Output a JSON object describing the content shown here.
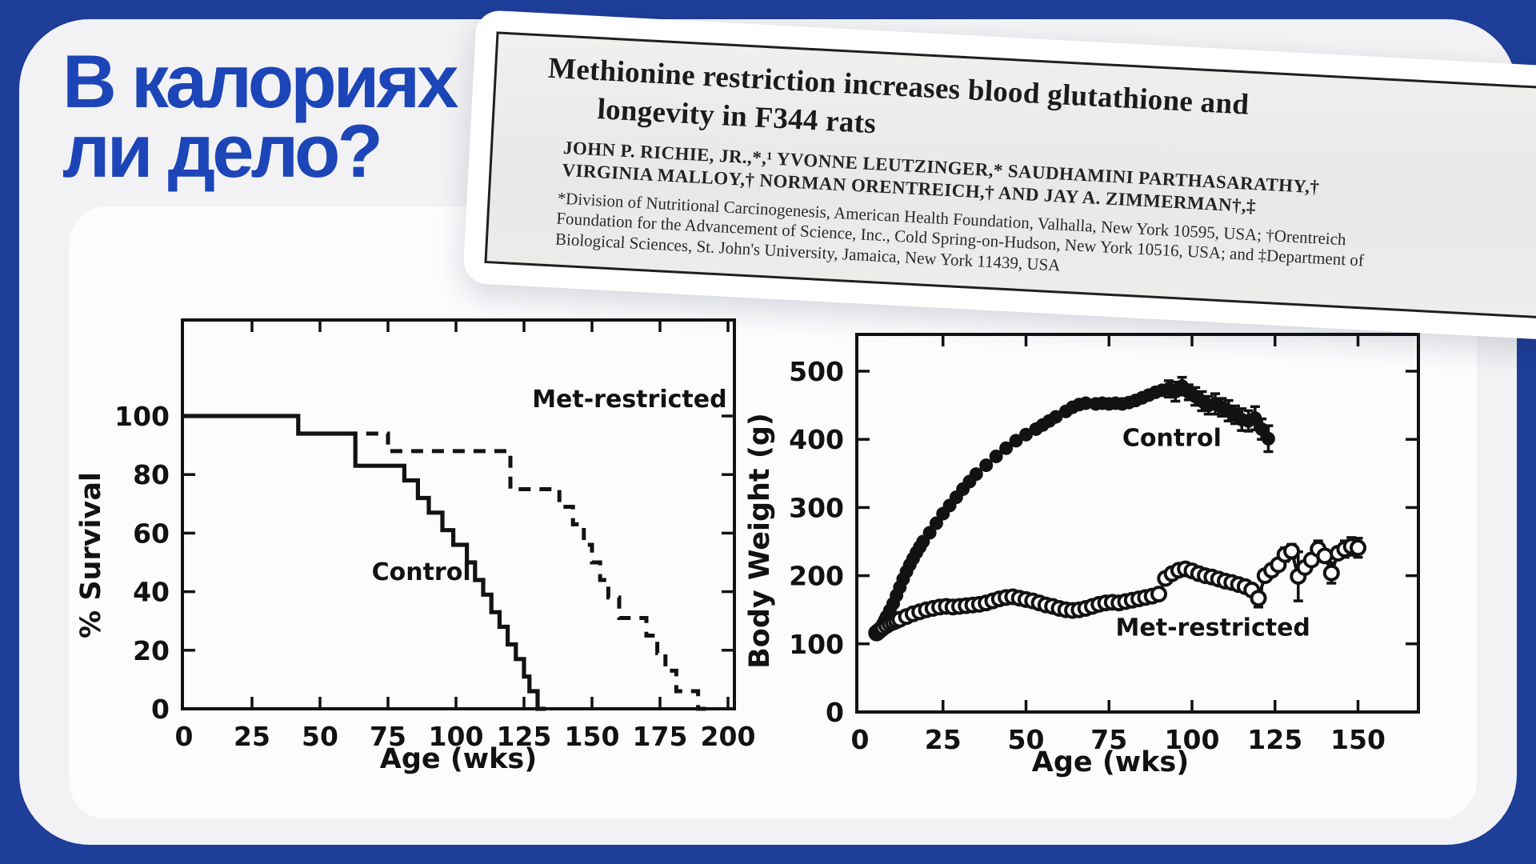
{
  "slide": {
    "title": {
      "line1": "В калориях",
      "line2": "ли дело?"
    },
    "colors": {
      "background": "#1e3e99",
      "card": "#f2f2f4",
      "panel": "#fcfcfd",
      "title_text": "#1c45b8",
      "ink": "#121212"
    }
  },
  "paper_clipping": {
    "title_line1": "Methionine restriction increases blood glutathione and",
    "title_line2": "longevity in F344 rats",
    "authors_line1": "JOHN P. RICHIE, JR.,*,¹ YVONNE LEUTZINGER,* SAUDHAMINI PARTHASARATHY,†",
    "authors_line2": "VIRGINIA MALLOY,† NORMAN ORENTREICH,† AND JAY A. ZIMMERMAN†,‡",
    "affiliation_line1": "*Division of Nutritional Carcinogenesis, American Health Foundation, Valhalla, New York 10595, USA; †Orentreich",
    "affiliation_line2": "Foundation for the Advancement of Science, Inc., Cold Spring-on-Hudson, New York 10516, USA; and ‡Department of",
    "affiliation_line3": "Biological Sciences, St. John's University, Jamaica, New York 11439, USA"
  },
  "chart_data": [
    {
      "type": "line",
      "variant": "survival-step",
      "xlabel": "Age (wks)",
      "ylabel": "% Survival",
      "xlim": [
        0,
        200
      ],
      "ylim": [
        0,
        100
      ],
      "xticks": [
        0,
        25,
        50,
        75,
        100,
        125,
        150,
        175,
        200
      ],
      "yticks": [
        0,
        20,
        40,
        60,
        80,
        100
      ],
      "grid": false,
      "series": [
        {
          "name": "Control",
          "style": "solid",
          "label_pos": [
            69,
            44
          ],
          "points": [
            [
              0,
              100
            ],
            [
              42,
              100
            ],
            [
              42,
              94
            ],
            [
              63,
              94
            ],
            [
              63,
              83
            ],
            [
              81,
              83
            ],
            [
              81,
              78
            ],
            [
              86,
              78
            ],
            [
              86,
              72
            ],
            [
              90,
              72
            ],
            [
              90,
              67
            ],
            [
              95,
              67
            ],
            [
              95,
              61
            ],
            [
              99,
              61
            ],
            [
              99,
              56
            ],
            [
              104,
              56
            ],
            [
              104,
              50
            ],
            [
              107,
              50
            ],
            [
              107,
              44
            ],
            [
              110,
              44
            ],
            [
              110,
              39
            ],
            [
              113,
              39
            ],
            [
              113,
              33
            ],
            [
              116,
              33
            ],
            [
              116,
              28
            ],
            [
              119,
              28
            ],
            [
              119,
              22
            ],
            [
              122,
              22
            ],
            [
              122,
              17
            ],
            [
              125,
              17
            ],
            [
              125,
              11
            ],
            [
              127,
              11
            ],
            [
              127,
              6
            ],
            [
              130,
              6
            ],
            [
              130,
              0
            ],
            [
              133,
              0
            ]
          ]
        },
        {
          "name": "Met-restricted",
          "style": "dashed",
          "label_pos": [
            128,
            103
          ],
          "points": [
            [
              67,
              94
            ],
            [
              75,
              94
            ],
            [
              75,
              88
            ],
            [
              120,
              88
            ],
            [
              120,
              75
            ],
            [
              138,
              75
            ],
            [
              138,
              69
            ],
            [
              143,
              69
            ],
            [
              143,
              63
            ],
            [
              147,
              63
            ],
            [
              147,
              56
            ],
            [
              150,
              56
            ],
            [
              150,
              50
            ],
            [
              153,
              50
            ],
            [
              153,
              44
            ],
            [
              156,
              44
            ],
            [
              156,
              38
            ],
            [
              160,
              38
            ],
            [
              160,
              31
            ],
            [
              170,
              31
            ],
            [
              170,
              25
            ],
            [
              174,
              25
            ],
            [
              174,
              19
            ],
            [
              177,
              19
            ],
            [
              177,
              13
            ],
            [
              181,
              13
            ],
            [
              181,
              6
            ],
            [
              189,
              6
            ],
            [
              189,
              0
            ],
            [
              192,
              0
            ]
          ]
        }
      ]
    },
    {
      "type": "scatter",
      "variant": "line-markers-errorbars",
      "xlabel": "Age (wks)",
      "ylabel": "Body Weight (g)",
      "xlim": [
        0,
        168
      ],
      "ylim": [
        0,
        550
      ],
      "xticks": [
        0,
        25,
        50,
        75,
        100,
        125,
        150
      ],
      "yticks": [
        0,
        100,
        200,
        300,
        400,
        500
      ],
      "grid": false,
      "series": [
        {
          "name": "Control",
          "marker": "filled",
          "label_pos": [
            79,
            390
          ],
          "points": [
            [
              5,
              117
            ],
            [
              5.5,
              120
            ],
            [
              6,
              123
            ],
            [
              6.5,
              126
            ],
            [
              7,
              130
            ],
            [
              7.5,
              135
            ],
            [
              8,
              140
            ],
            [
              9,
              149
            ],
            [
              10,
              159
            ],
            [
              11,
              171
            ],
            [
              12,
              183
            ],
            [
              13,
              195
            ],
            [
              14,
              206
            ],
            [
              15,
              216
            ],
            [
              16,
              225
            ],
            [
              17,
              234
            ],
            [
              18,
              242
            ],
            [
              19,
              250
            ],
            [
              21,
              263
            ],
            [
              23,
              277
            ],
            [
              25,
              291
            ],
            [
              27,
              303
            ],
            [
              29,
              315
            ],
            [
              31,
              327
            ],
            [
              33,
              338
            ],
            [
              35,
              349
            ],
            [
              38,
              362
            ],
            [
              41,
              375
            ],
            [
              44,
              387
            ],
            [
              47,
              398
            ],
            [
              50,
              407
            ],
            [
              53,
              415
            ],
            [
              55,
              421
            ],
            [
              57,
              427
            ],
            [
              59,
              433
            ],
            [
              62,
              441
            ],
            [
              64,
              447
            ],
            [
              66,
              451
            ],
            [
              68,
              453
            ],
            [
              71,
              452
            ],
            [
              73,
              453
            ],
            [
              75,
              452
            ],
            [
              77,
              453
            ],
            [
              79,
              452
            ],
            [
              81,
              454
            ],
            [
              83,
              457
            ],
            [
              85,
              461
            ],
            [
              87,
              465
            ],
            [
              89,
              469
            ],
            [
              91,
              472
            ],
            [
              93,
              474,
              12
            ],
            [
              95,
              470,
              14
            ],
            [
              97,
              478,
              13
            ],
            [
              99,
              469,
              11
            ],
            [
              101,
              463,
              13
            ],
            [
              103,
              456,
              14
            ],
            [
              105,
              450,
              13
            ],
            [
              107,
              452,
              15
            ],
            [
              109,
              447,
              13
            ],
            [
              111,
              442,
              15
            ],
            [
              113,
              436,
              13
            ],
            [
              115,
              429,
              16
            ],
            [
              117,
              427,
              15
            ],
            [
              119,
              431,
              17
            ],
            [
              121,
              415,
              15
            ],
            [
              123,
              401,
              19
            ]
          ]
        },
        {
          "name": "Met-restricted",
          "marker": "open",
          "label_pos": [
            77,
            112
          ],
          "points": [
            [
              5,
              116
            ],
            [
              5.5,
              118
            ],
            [
              6,
              120
            ],
            [
              6.5,
              122
            ],
            [
              7,
              124
            ],
            [
              8,
              127
            ],
            [
              9,
              130
            ],
            [
              10,
              132
            ],
            [
              11,
              134
            ],
            [
              12,
              136
            ],
            [
              14,
              140
            ],
            [
              16,
              144
            ],
            [
              18,
              147
            ],
            [
              20,
              150
            ],
            [
              22,
              152
            ],
            [
              24,
              154
            ],
            [
              26,
              155
            ],
            [
              28,
              154
            ],
            [
              30,
              155
            ],
            [
              32,
              156
            ],
            [
              34,
              157
            ],
            [
              36,
              158
            ],
            [
              38,
              160
            ],
            [
              40,
              163
            ],
            [
              42,
              166
            ],
            [
              44,
              168
            ],
            [
              46,
              169
            ],
            [
              48,
              167
            ],
            [
              50,
              165
            ],
            [
              52,
              163
            ],
            [
              54,
              160
            ],
            [
              56,
              157
            ],
            [
              58,
              155
            ],
            [
              60,
              152
            ],
            [
              62,
              150
            ],
            [
              64,
              149
            ],
            [
              66,
              150
            ],
            [
              68,
              152
            ],
            [
              70,
              155
            ],
            [
              72,
              158
            ],
            [
              74,
              160
            ],
            [
              76,
              161
            ],
            [
              78,
              160
            ],
            [
              80,
              162
            ],
            [
              82,
              164
            ],
            [
              84,
              166
            ],
            [
              86,
              168
            ],
            [
              88,
              170
            ],
            [
              90,
              173
            ],
            [
              92,
              196
            ],
            [
              94,
              203
            ],
            [
              96,
              208
            ],
            [
              98,
              210
            ],
            [
              100,
              207
            ],
            [
              102,
              203
            ],
            [
              104,
              200
            ],
            [
              106,
              198
            ],
            [
              108,
              195
            ],
            [
              110,
              192
            ],
            [
              112,
              190
            ],
            [
              114,
              187
            ],
            [
              116,
              184
            ],
            [
              118,
              179
            ],
            [
              120,
              167,
              13
            ],
            [
              122,
              200
            ],
            [
              124,
              208
            ],
            [
              126,
              216
            ],
            [
              128,
              231,
              10
            ],
            [
              130,
              236,
              10
            ],
            [
              132,
              199,
              36
            ],
            [
              134,
              212
            ],
            [
              136,
              223
            ],
            [
              138,
              239,
              12
            ],
            [
              140,
              229
            ],
            [
              142,
              204,
              15
            ],
            [
              144,
              233
            ],
            [
              146,
              239,
              12
            ],
            [
              148,
              243,
              13
            ],
            [
              150,
              241,
              14
            ]
          ]
        }
      ]
    }
  ]
}
